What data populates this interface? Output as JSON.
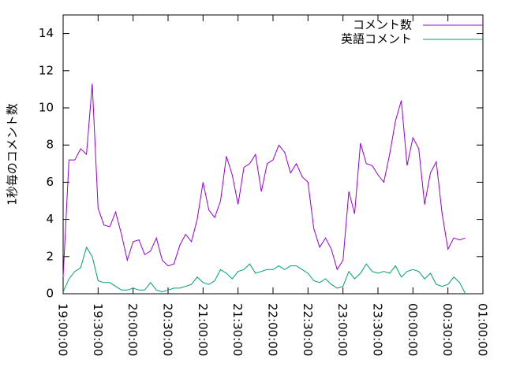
{
  "chart_data": {
    "type": "line",
    "ylabel": "1秒毎のコメント数",
    "x": [
      "19:00:00",
      "19:05:00",
      "19:10:00",
      "19:15:00",
      "19:20:00",
      "19:25:00",
      "19:30:00",
      "19:35:00",
      "19:40:00",
      "19:45:00",
      "19:50:00",
      "19:55:00",
      "20:00:00",
      "20:05:00",
      "20:10:00",
      "20:15:00",
      "20:20:00",
      "20:25:00",
      "20:30:00",
      "20:35:00",
      "20:40:00",
      "20:45:00",
      "20:50:00",
      "20:55:00",
      "21:00:00",
      "21:05:00",
      "21:10:00",
      "21:15:00",
      "21:20:00",
      "21:25:00",
      "21:30:00",
      "21:35:00",
      "21:40:00",
      "21:45:00",
      "21:50:00",
      "21:55:00",
      "22:00:00",
      "22:05:00",
      "22:10:00",
      "22:15:00",
      "22:20:00",
      "22:25:00",
      "22:30:00",
      "22:35:00",
      "22:40:00",
      "22:45:00",
      "22:50:00",
      "22:55:00",
      "23:00:00",
      "23:05:00",
      "23:10:00",
      "23:15:00",
      "23:20:00",
      "23:25:00",
      "23:30:00",
      "23:35:00",
      "23:40:00",
      "23:45:00",
      "23:50:00",
      "23:55:00",
      "00:00:00",
      "00:05:00",
      "00:10:00",
      "00:15:00",
      "00:20:00",
      "00:25:00",
      "00:30:00",
      "00:35:00",
      "00:40:00",
      "00:45:00"
    ],
    "series": [
      {
        "name": "コメント数",
        "color": "#9400d3",
        "values": [
          0.9,
          7.2,
          7.2,
          7.8,
          7.5,
          11.3,
          4.6,
          3.7,
          3.6,
          4.4,
          3.2,
          1.8,
          2.8,
          2.9,
          2.1,
          2.3,
          3.0,
          1.8,
          1.5,
          1.6,
          2.6,
          3.2,
          2.8,
          4.0,
          6.0,
          4.5,
          4.1,
          5.0,
          7.4,
          6.4,
          4.8,
          6.8,
          7.0,
          7.5,
          5.5,
          7.0,
          7.2,
          8.0,
          7.6,
          6.5,
          7.0,
          6.3,
          6.0,
          3.5,
          2.5,
          3.0,
          2.4,
          1.3,
          1.8,
          5.5,
          4.3,
          8.1,
          7.0,
          6.9,
          6.4,
          6.0,
          7.5,
          9.3,
          10.4,
          6.9,
          8.4,
          7.8,
          4.8,
          6.5,
          7.1,
          4.3,
          2.4,
          3.0,
          2.9,
          3.0
        ]
      },
      {
        "name": "英語コメント",
        "color": "#009e73",
        "values": [
          0.1,
          0.8,
          1.2,
          1.4,
          2.5,
          2.0,
          0.7,
          0.6,
          0.6,
          0.4,
          0.2,
          0.2,
          0.3,
          0.2,
          0.2,
          0.6,
          0.2,
          0.1,
          0.2,
          0.3,
          0.3,
          0.4,
          0.5,
          0.9,
          0.6,
          0.5,
          0.7,
          1.3,
          1.1,
          0.8,
          1.2,
          1.3,
          1.6,
          1.1,
          1.2,
          1.3,
          1.3,
          1.5,
          1.3,
          1.5,
          1.5,
          1.3,
          1.1,
          0.7,
          0.6,
          0.8,
          0.5,
          0.3,
          0.4,
          1.2,
          0.8,
          1.1,
          1.6,
          1.2,
          1.1,
          1.2,
          1.1,
          1.5,
          0.9,
          1.2,
          1.3,
          1.2,
          0.8,
          1.1,
          0.5,
          0.4,
          0.5,
          0.9,
          0.6,
          0.0
        ]
      }
    ],
    "xlim": [
      "19:00:00",
      "01:00:00"
    ],
    "xticks": [
      "19:00:00",
      "19:30:00",
      "20:00:00",
      "20:30:00",
      "21:00:00",
      "21:30:00",
      "22:00:00",
      "22:30:00",
      "23:00:00",
      "23:30:00",
      "00:00:00",
      "00:30:00",
      "01:00:00"
    ],
    "ylim": [
      0,
      15
    ],
    "yticks": [
      0,
      2,
      4,
      6,
      8,
      10,
      12,
      14
    ],
    "legend": "top-right"
  }
}
